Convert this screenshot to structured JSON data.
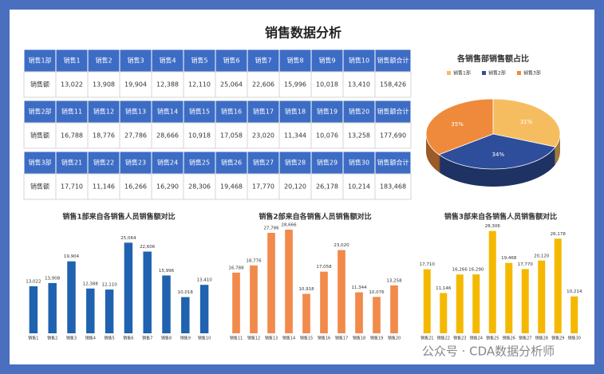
{
  "title": "销售数据分析",
  "watermark": "公众号 · CDA数据分析师",
  "table": {
    "sections": [
      {
        "header": [
          "销售1部",
          "销售1",
          "销售2",
          "销售3",
          "销售4",
          "销售5",
          "销售6",
          "销售7",
          "销售8",
          "销售9",
          "销售10",
          "销售额合计"
        ],
        "row": [
          "销售额",
          "13,022",
          "13,908",
          "19,904",
          "12,388",
          "12,110",
          "25,064",
          "22,606",
          "15,996",
          "10,018",
          "13,410",
          "158,426"
        ]
      },
      {
        "header": [
          "销售2部",
          "销售11",
          "销售12",
          "销售13",
          "销售14",
          "销售15",
          "销售16",
          "销售17",
          "销售18",
          "销售19",
          "销售20",
          "销售额合计"
        ],
        "row": [
          "销售额",
          "16,788",
          "18,776",
          "27,786",
          "28,666",
          "10,918",
          "17,058",
          "23,020",
          "11,344",
          "10,076",
          "13,258",
          "177,690"
        ]
      },
      {
        "header": [
          "销售3部",
          "销售21",
          "销售22",
          "销售23",
          "销售24",
          "销售25",
          "销售26",
          "销售27",
          "销售28",
          "销售29",
          "销售30",
          "销售额合计"
        ],
        "row": [
          "销售额",
          "17,710",
          "11,146",
          "16,266",
          "16,290",
          "28,306",
          "19,468",
          "17,770",
          "20,120",
          "26,178",
          "10,214",
          "183,468"
        ]
      }
    ]
  },
  "chart_data": [
    {
      "type": "pie",
      "title": "各销售部销售额占比",
      "categories": [
        "销售1部",
        "销售2部",
        "销售3部"
      ],
      "values": [
        31,
        34,
        35
      ],
      "value_labels": [
        "31%",
        "34%",
        "35%"
      ],
      "colors": [
        "#f6bd60",
        "#2e4d9a",
        "#ef8a3c"
      ],
      "legend": "top"
    },
    {
      "type": "bar",
      "title": "销售1部来自各销售人员销售额对比",
      "color": "#1f62b0",
      "categories": [
        "销售1",
        "销售2",
        "销售3",
        "销售4",
        "销售5",
        "销售6",
        "销售7",
        "销售8",
        "销售9",
        "销售10"
      ],
      "values": [
        13022,
        13908,
        19904,
        12388,
        12110,
        25064,
        22606,
        15996,
        10018,
        13410
      ],
      "value_labels": [
        "13,022",
        "13,908",
        "19,904",
        "12,388",
        "12,110",
        "25,064",
        "22,606",
        "15,996",
        "10,018",
        "13,410"
      ]
    },
    {
      "type": "bar",
      "title": "销售2部来自各销售人员销售额对比",
      "color": "#f28a4c",
      "categories": [
        "销售11",
        "销售12",
        "销售13",
        "销售14",
        "销售15",
        "销售16",
        "销售17",
        "销售18",
        "销售19",
        "销售20"
      ],
      "values": [
        16788,
        18776,
        27786,
        28666,
        10918,
        17058,
        23020,
        11344,
        10076,
        13258
      ],
      "value_labels": [
        "16,788",
        "18,776",
        "27,786",
        "28,666",
        "10,918",
        "17,058",
        "23,020",
        "11,344",
        "10,076",
        "13,258"
      ]
    },
    {
      "type": "bar",
      "title": "销售3部来自各销售人员销售额对比",
      "color": "#f5b800",
      "categories": [
        "销售21",
        "销售22",
        "销售23",
        "销售24",
        "销售25",
        "销售26",
        "销售27",
        "销售28",
        "销售29",
        "销售30"
      ],
      "values": [
        17710,
        11146,
        16266,
        16290,
        28306,
        19468,
        17770,
        20120,
        26178,
        10214
      ],
      "value_labels": [
        "17,710",
        "11,146",
        "16,266",
        "16,290",
        "28,306",
        "19,468",
        "17,770",
        "20,120",
        "26,178",
        "10,214"
      ]
    }
  ]
}
